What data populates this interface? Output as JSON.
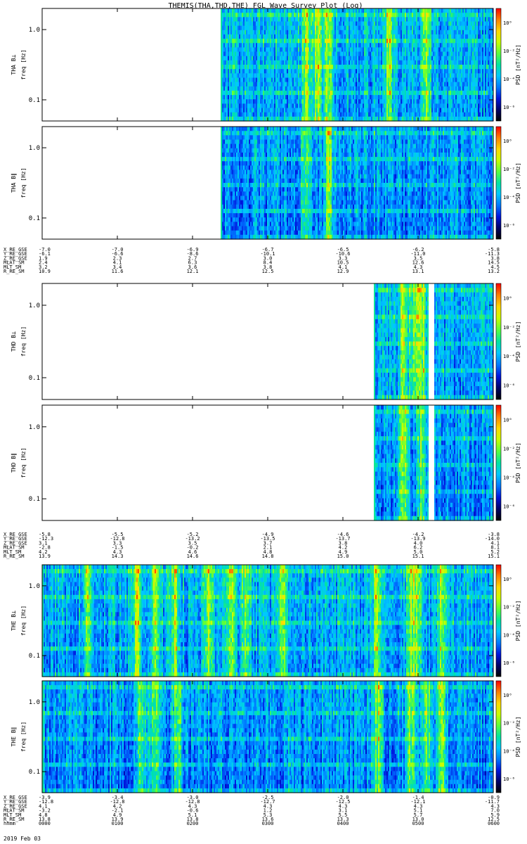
{
  "title": "THEMIS(THA,THD,THE) FGL Wave Survey Plot (Log)",
  "colorbar": {
    "label": "PSD [nT²/Hz]",
    "ticks": [
      "10⁰",
      "10⁻²",
      "10⁻⁴",
      "10⁻⁶"
    ],
    "tick_exponents": [
      0,
      -2,
      -4,
      -6
    ],
    "range_exponents": [
      -7,
      1
    ],
    "stops": [
      "#ff0000",
      "#ff7f00",
      "#ffd800",
      "#c8ff00",
      "#5aff3c",
      "#00e6a0",
      "#00c8ff",
      "#0078ff",
      "#0014dc",
      "#000066",
      "#000000"
    ]
  },
  "freq_axis": {
    "label": "freq [Hz]",
    "ticks": [
      "1.0",
      "0.1"
    ],
    "tick_values": [
      1.0,
      0.1
    ],
    "range": [
      0.05,
      2.0
    ]
  },
  "chart_data": [
    {
      "type": "heatmap",
      "title": "",
      "ylabel": "THA B⊥ / freq [Hz]",
      "y_scale": "log",
      "ylim": [
        0.05,
        2.0
      ],
      "x_range_hours": [
        0,
        6
      ],
      "data_start_hour": 2.38,
      "description_values": "relative PSD per time column (0-1 scale, colour-mapped)",
      "active_hours": [
        3.5,
        3.65,
        3.8,
        4.6,
        5.1
      ],
      "gaps": []
    },
    {
      "type": "heatmap",
      "title": "",
      "ylabel": "THA B∥ / freq [Hz]",
      "y_scale": "log",
      "ylim": [
        0.05,
        2.0
      ],
      "x_range_hours": [
        0,
        6
      ],
      "data_start_hour": 2.38,
      "active_hours": [
        3.5,
        3.8
      ],
      "gaps": []
    },
    {
      "type": "heatmap",
      "title": "",
      "ylabel": "THD B⊥ / freq [Hz]",
      "y_scale": "log",
      "ylim": [
        0.05,
        2.0
      ],
      "x_range_hours": [
        0,
        6
      ],
      "data_start_hour": 4.42,
      "active_hours": [
        4.8,
        4.95,
        5.05
      ],
      "gaps": [
        [
          5.13,
          5.2
        ]
      ]
    },
    {
      "type": "heatmap",
      "title": "",
      "ylabel": "THD B∥ / freq [Hz]",
      "y_scale": "log",
      "ylim": [
        0.05,
        2.0
      ],
      "x_range_hours": [
        0,
        6
      ],
      "data_start_hour": 4.42,
      "active_hours": [
        4.8,
        5.05
      ],
      "gaps": [
        [
          5.13,
          5.2
        ]
      ]
    },
    {
      "type": "heatmap",
      "title": "",
      "ylabel": "THE B⊥ / freq [Hz]",
      "y_scale": "log",
      "ylim": [
        0.05,
        2.0
      ],
      "x_range_hours": [
        0,
        6
      ],
      "data_start_hour": 0,
      "active_hours": [
        0.6,
        1.25,
        1.5,
        1.75,
        2.2,
        2.5,
        2.7,
        3.2,
        4.45,
        4.9,
        5.0,
        5.3
      ],
      "gaps": []
    },
    {
      "type": "heatmap",
      "title": "",
      "ylabel": "THE B∥ / freq [Hz]",
      "y_scale": "log",
      "ylim": [
        0.05,
        2.0
      ],
      "x_range_hours": [
        0,
        6
      ],
      "data_start_hour": 0,
      "active_hours": [
        1.3,
        1.5,
        1.8,
        4.45,
        4.9,
        5.1,
        5.3
      ],
      "gaps": []
    }
  ],
  "ephemeris": [
    {
      "probe": "THA",
      "rows": [
        {
          "label": "X_RE_GSE",
          "values": [
            "-7.0",
            "-7.0",
            "-6.9",
            "-6.7",
            "-6.5",
            "-6.2",
            "-5.8"
          ]
        },
        {
          "label": "Y_RE_GSE",
          "values": [
            "-6.1",
            "-6.6",
            "-8.6",
            "-10.1",
            "-10.6",
            "-11.0",
            "-11.3"
          ]
        },
        {
          "label": "Z_RE_GSE",
          "values": [
            "1.9",
            "2.3",
            "2.7",
            "3.0",
            "3.3",
            "3.5",
            "3.8"
          ]
        },
        {
          "label": "MLAT_SM",
          "values": [
            "2.4",
            "4.1",
            "6.3",
            "8.4",
            "10.5",
            "12.6",
            "14.5"
          ]
        },
        {
          "label": "MLT_SM",
          "values": [
            "3.2",
            "3.4",
            "3.6",
            "3.8",
            "4.1",
            "4.3",
            "4.5"
          ]
        },
        {
          "label": "R_RE_SM",
          "values": [
            "10.9",
            "11.6",
            "12.1",
            "12.5",
            "12.9",
            "13.1",
            "13.2"
          ]
        }
      ]
    },
    {
      "probe": "THD",
      "rows": [
        {
          "label": "X_RE_GSE",
          "values": [
            "-5.8",
            "-5.5",
            "-5.2",
            "-4.9",
            "-4.6",
            "-4.2",
            "-3.8"
          ]
        },
        {
          "label": "Y_RE_GSE",
          "values": [
            "-12.3",
            "-12.8",
            "-13.2",
            "-13.5",
            "-13.7",
            "-13.9",
            "-14.0"
          ]
        },
        {
          "label": "Z_RE_GSE",
          "values": [
            "3.1",
            "3.3",
            "3.5",
            "3.7",
            "3.8",
            "4.0",
            "4.1"
          ]
        },
        {
          "label": "MLAT_SM",
          "values": [
            "-2.8",
            "-1.5",
            "-0.2",
            "2.1",
            "4.2",
            "6.2",
            "8.1"
          ]
        },
        {
          "label": "MLT_SM",
          "values": [
            "4.2",
            "4.3",
            "4.6",
            "4.8",
            "4.9",
            "5.0",
            "5.2"
          ]
        },
        {
          "label": "R_RE_SM",
          "values": [
            "13.9",
            "14.3",
            "14.6",
            "14.8",
            "15.0",
            "15.1",
            "15.1"
          ]
        }
      ]
    },
    {
      "probe": "THE",
      "rows": [
        {
          "label": "X_RE_GSE",
          "values": [
            "-3.9",
            "-3.4",
            "-3.0",
            "-2.5",
            "-2.0",
            "-1.4",
            "-0.9"
          ]
        },
        {
          "label": "Y_RE_GSE",
          "values": [
            "-12.8",
            "-12.8",
            "-12.8",
            "-12.7",
            "-12.5",
            "-12.1",
            "-11.7"
          ]
        },
        {
          "label": "Z_RE_GSE",
          "values": [
            "4.1",
            "4.2",
            "4.3",
            "4.3",
            "4.3",
            "4.3",
            "4.3"
          ]
        },
        {
          "label": "MLAT_SM",
          "values": [
            "-3.2",
            "-2.1",
            "-0.6",
            "1.2",
            "3.1",
            "5.1",
            "7.0"
          ]
        },
        {
          "label": "MLT_SM",
          "values": [
            "4.8",
            "4.9",
            "5.1",
            "5.3",
            "5.5",
            "5.7",
            "5.9"
          ]
        },
        {
          "label": "R_RE_SM",
          "values": [
            "13.8",
            "13.9",
            "13.8",
            "13.6",
            "13.3",
            "13.0",
            "12.5"
          ]
        },
        {
          "label": "hhmm",
          "values": [
            "0000",
            "0100",
            "0200",
            "0300",
            "0400",
            "0500",
            "0600"
          ]
        }
      ]
    }
  ],
  "date_label": "2019 Feb 03"
}
